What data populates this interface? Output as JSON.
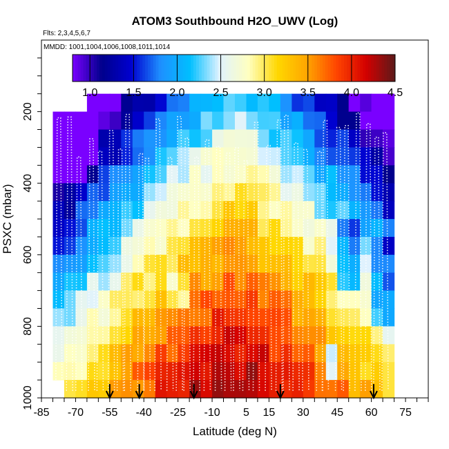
{
  "chart_data": {
    "type": "heatmap",
    "title": "ATOM3 Southbound H2O_UWV (Log)",
    "subtitle_flights": "Flts: 2,3,4,5,6,7",
    "subtitle_dates": "MMDD: 1001,1004,1006,1008,1011,1014",
    "xlabel": "Latitude (deg N)",
    "ylabel": "PSXC (mbar)",
    "xlim": [
      -85,
      85
    ],
    "ylim": [
      1000,
      0
    ],
    "x_tick_labels": [
      "-85",
      "-70",
      "-55",
      "-40",
      "-25",
      "-10",
      "5",
      "15",
      "30",
      "45",
      "60",
      "75"
    ],
    "x_tick_values": [
      -85,
      -70,
      -55,
      -40,
      -25,
      -10,
      5,
      15,
      30,
      45,
      60,
      75
    ],
    "y_tick_labels": [
      "200",
      "400",
      "600",
      "800",
      "1000"
    ],
    "y_tick_values": [
      200,
      400,
      600,
      800,
      1000
    ],
    "colorbar": {
      "range": [
        0.8,
        4.5
      ],
      "tick_labels": [
        "1.0",
        "1.5",
        "2.0",
        "2.5",
        "3.0",
        "3.5",
        "4.0",
        "4.5"
      ],
      "tick_values": [
        1.0,
        1.5,
        2.0,
        2.5,
        3.0,
        3.5,
        4.0,
        4.5
      ],
      "colors": [
        "#7a00ff",
        "#00008b",
        "#0000d0",
        "#1e90ff",
        "#00bfff",
        "#dff2ff",
        "#ffffc0",
        "#ffd700",
        "#ffa500",
        "#ff4500",
        "#d40000",
        "#5c1a1a"
      ]
    },
    "grid": {
      "lat_edges": [
        -80,
        -75,
        -70,
        -65,
        -60,
        -55,
        -50,
        -45,
        -40,
        -35,
        -30,
        -25,
        -20,
        -15,
        -10,
        -5,
        0,
        5,
        10,
        15,
        20,
        25,
        30,
        35,
        40,
        45,
        50,
        55,
        60,
        65,
        70
      ],
      "pressure_edges": [
        100,
        150,
        200,
        250,
        300,
        350,
        400,
        450,
        500,
        550,
        600,
        650,
        700,
        750,
        800,
        850,
        900,
        950,
        1000
      ]
    },
    "markers": {
      "type": "arrow-down",
      "latitudes": [
        -55,
        -42,
        -18,
        20,
        61
      ]
    }
  }
}
